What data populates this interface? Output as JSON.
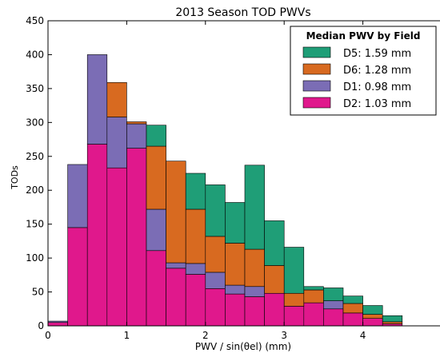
{
  "chart_data": {
    "type": "bar",
    "stacked": true,
    "title": "2013 Season TOD PWVs",
    "xlabel": "PWV / sin(θel)  (mm)",
    "ylabel": "TODs",
    "xlim": [
      0,
      5
    ],
    "ylim": [
      0,
      450
    ],
    "xticks": [
      "0",
      "1",
      "2",
      "3",
      "4"
    ],
    "yticks": [
      "0",
      "50",
      "100",
      "150",
      "200",
      "250",
      "300",
      "350",
      "400",
      "450"
    ],
    "bin_width": 0.25,
    "bin_starts": [
      0.0,
      0.25,
      0.5,
      0.75,
      1.0,
      1.25,
      1.5,
      1.75,
      2.0,
      2.25,
      2.5,
      2.75,
      3.0,
      3.25,
      3.5,
      3.75,
      4.0,
      4.25
    ],
    "grid": false,
    "legend": {
      "title": "Median PWV by Field",
      "placement": "top-right"
    },
    "series": [
      {
        "name": "D2: 1.03 mm",
        "color": "#e0188c",
        "values": [
          5,
          145,
          268,
          233,
          262,
          111,
          85,
          76,
          55,
          47,
          43,
          48,
          29,
          34,
          25,
          19,
          11,
          3
        ]
      },
      {
        "name": "D1: 0.98 mm",
        "color": "#7b6db5",
        "values": [
          2,
          93,
          132,
          75,
          36,
          61,
          8,
          16,
          24,
          13,
          15,
          0,
          0,
          0,
          12,
          0,
          0,
          0
        ]
      },
      {
        "name": "D6: 1.28 mm",
        "color": "#d86a20",
        "values": [
          0,
          0,
          0,
          51,
          3,
          93,
          150,
          80,
          53,
          62,
          55,
          41,
          19,
          19,
          0,
          14,
          6,
          3
        ]
      },
      {
        "name": "D5: 1.59 mm",
        "color": "#1f9e77",
        "values": [
          0,
          0,
          0,
          0,
          0,
          31,
          0,
          53,
          76,
          60,
          124,
          66,
          68,
          5,
          19,
          11,
          13,
          9
        ]
      }
    ]
  }
}
